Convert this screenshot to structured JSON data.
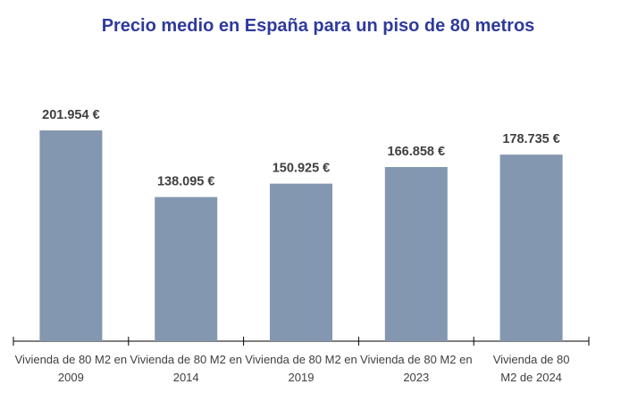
{
  "chart_data": {
    "type": "bar",
    "title": "Precio medio en España para un piso de 80 metros",
    "categories": [
      "Vivienda de 80 M2 en 2009",
      "Vivienda de 80 M2 en 2014",
      "Vivienda de 80 M2 en 2019",
      "Vivienda de 80 M2 en 2023",
      "Vivienda de 80 M2 de 2024"
    ],
    "values": [
      201954,
      138095,
      150925,
      166858,
      178735
    ],
    "data_labels": [
      "201.954 €",
      "138.095 €",
      "150.925 €",
      "166.858 €",
      "178.735 €"
    ],
    "xlabel": "",
    "ylabel": "",
    "ylim": [
      0,
      201954
    ],
    "grid": false,
    "bar_color": "#8497b0",
    "title_color": "#2f3a9c"
  }
}
